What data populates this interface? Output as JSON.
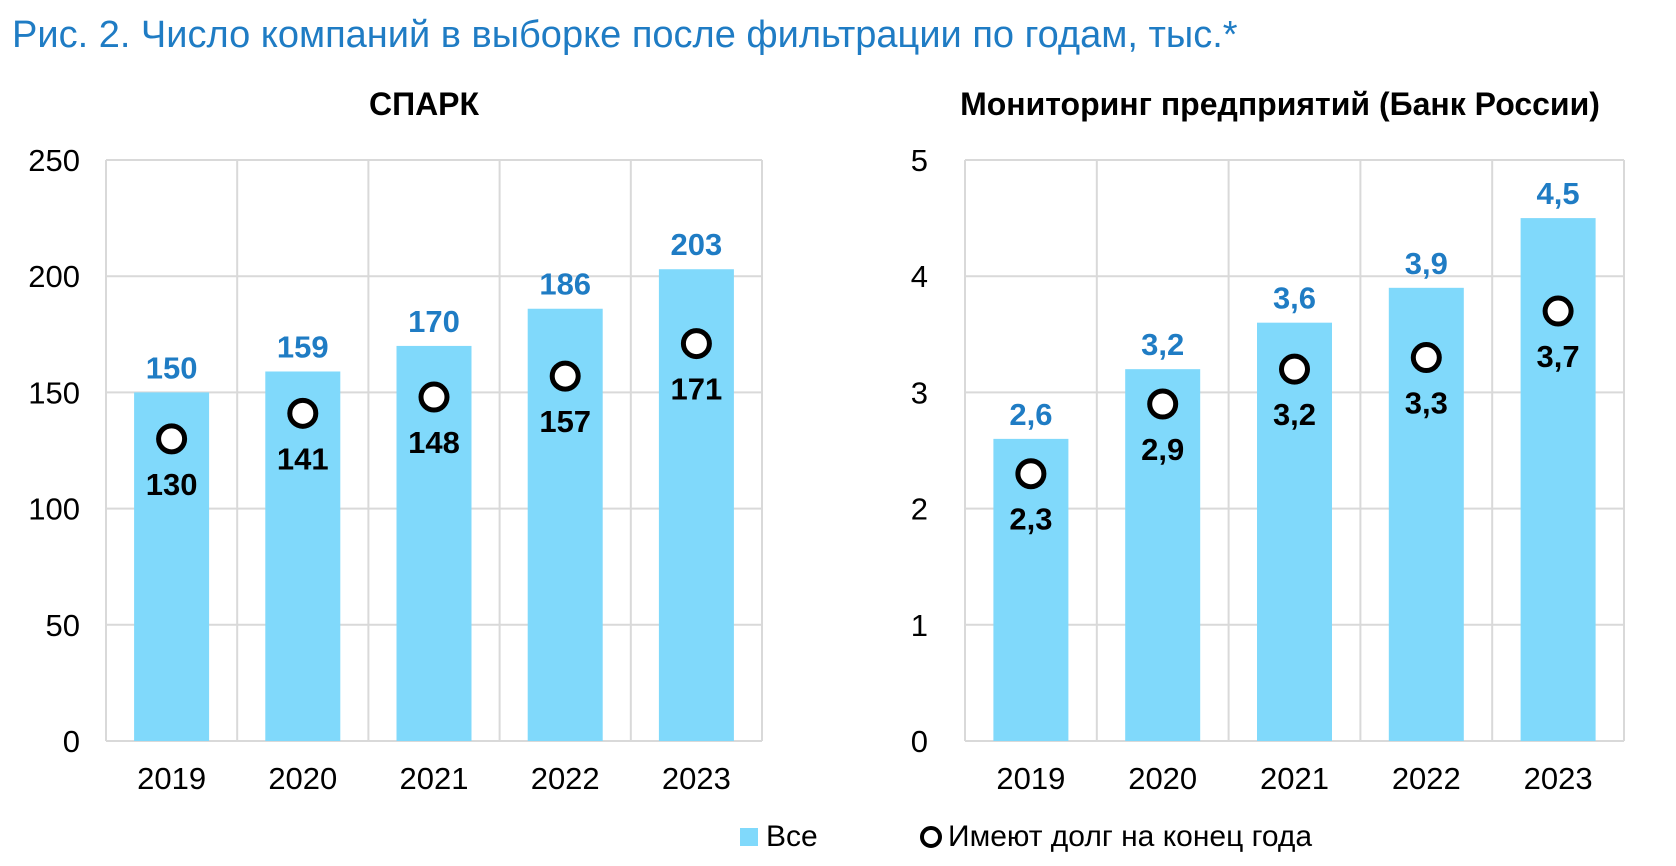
{
  "title": "Рис. 2. Число компаний в выборке после фильтрации по годам, тыс.*",
  "legend": {
    "bar_label": "Все",
    "dot_label": "Имеют долг на конец года"
  },
  "colors": {
    "title": "#1f7cc4",
    "bar": "#80d9fb",
    "bar_label": "#1f7cc4",
    "grid": "#d9d9d9",
    "dot_label": "#000000"
  },
  "chart_data": [
    {
      "type": "bar",
      "title": "СПАРК",
      "categories": [
        "2019",
        "2020",
        "2021",
        "2022",
        "2023"
      ],
      "ylim": [
        0,
        250
      ],
      "yticks": [
        "0",
        "50",
        "100",
        "150",
        "200",
        "250"
      ],
      "grid": true,
      "series": [
        {
          "name": "Все",
          "values": [
            150,
            159,
            170,
            186,
            203
          ],
          "labels": [
            "150",
            "159",
            "170",
            "186",
            "203"
          ]
        },
        {
          "name": "Имеют долг на конец года",
          "values": [
            130,
            141,
            148,
            157,
            171
          ],
          "labels": [
            "130",
            "141",
            "148",
            "157",
            "171"
          ]
        }
      ]
    },
    {
      "type": "bar",
      "title": "Мониторинг предприятий (Банк России)",
      "categories": [
        "2019",
        "2020",
        "2021",
        "2022",
        "2023"
      ],
      "ylim": [
        0,
        5
      ],
      "yticks": [
        "0",
        "1",
        "2",
        "3",
        "4",
        "5"
      ],
      "grid": true,
      "series": [
        {
          "name": "Все",
          "values": [
            2.6,
            3.2,
            3.6,
            3.9,
            4.5
          ],
          "labels": [
            "2,6",
            "3,2",
            "3,6",
            "3,9",
            "4,5"
          ]
        },
        {
          "name": "Имеют долг на конец года",
          "values": [
            2.3,
            2.9,
            3.2,
            3.3,
            3.7
          ],
          "labels": [
            "2,3",
            "2,9",
            "3,2",
            "3,3",
            "3,7"
          ]
        }
      ]
    }
  ]
}
